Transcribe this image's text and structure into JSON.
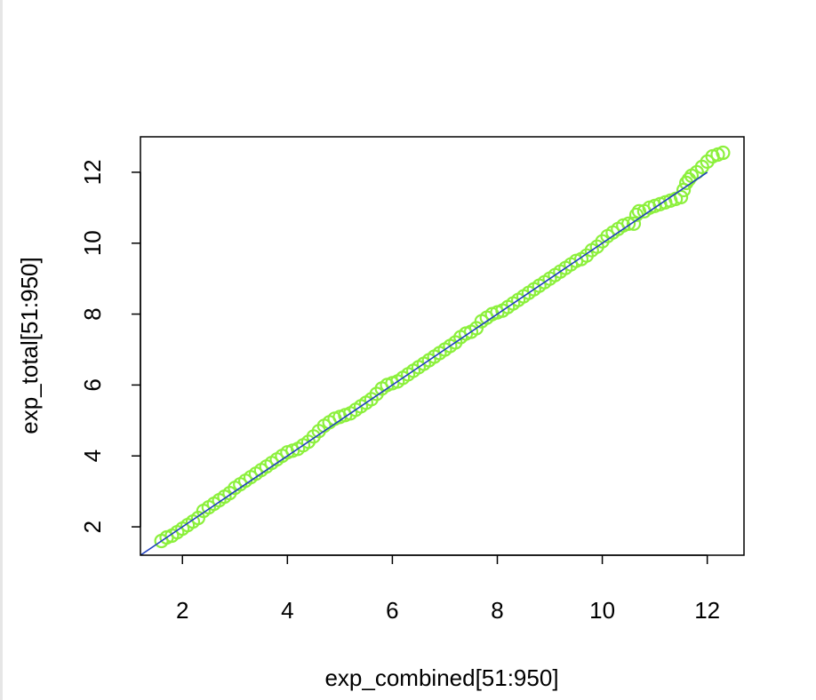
{
  "chart_data": {
    "type": "scatter",
    "title": "",
    "xlabel": "exp_combined[51:950]",
    "ylabel": "exp_total[51:950]",
    "xlim": [
      1.2,
      12.7
    ],
    "ylim": [
      1.2,
      13.0
    ],
    "x_ticks": [
      2,
      4,
      6,
      8,
      10,
      12
    ],
    "y_ticks": [
      2,
      4,
      6,
      8,
      10,
      12
    ],
    "x_tick_labels": [
      "2",
      "4",
      "6",
      "8",
      "10",
      "12"
    ],
    "y_tick_labels": [
      "2",
      "4",
      "6",
      "8",
      "10",
      "12"
    ],
    "grid": false,
    "point_color": "#8cf03c",
    "line_color": "#1f3fbf",
    "reference_line": {
      "type": "abline",
      "intercept": 0,
      "slope": 1,
      "x_range": [
        1.2,
        12.0
      ]
    },
    "series": [
      {
        "values": [
          [
            1.6,
            1.6
          ],
          [
            1.7,
            1.7
          ],
          [
            1.8,
            1.75
          ],
          [
            1.9,
            1.85
          ],
          [
            2.0,
            1.95
          ],
          [
            2.1,
            2.05
          ],
          [
            2.2,
            2.15
          ],
          [
            2.3,
            2.25
          ],
          [
            2.4,
            2.45
          ],
          [
            2.5,
            2.55
          ],
          [
            2.6,
            2.65
          ],
          [
            2.7,
            2.75
          ],
          [
            2.8,
            2.85
          ],
          [
            2.9,
            2.95
          ],
          [
            3.0,
            3.1
          ],
          [
            3.1,
            3.2
          ],
          [
            3.2,
            3.3
          ],
          [
            3.3,
            3.4
          ],
          [
            3.4,
            3.5
          ],
          [
            3.5,
            3.6
          ],
          [
            3.6,
            3.7
          ],
          [
            3.7,
            3.8
          ],
          [
            3.8,
            3.9
          ],
          [
            3.9,
            4.0
          ],
          [
            4.0,
            4.1
          ],
          [
            4.1,
            4.15
          ],
          [
            4.2,
            4.2
          ],
          [
            4.3,
            4.3
          ],
          [
            4.4,
            4.4
          ],
          [
            4.5,
            4.55
          ],
          [
            4.6,
            4.7
          ],
          [
            4.7,
            4.85
          ],
          [
            4.8,
            4.95
          ],
          [
            4.9,
            5.05
          ],
          [
            5.0,
            5.1
          ],
          [
            5.1,
            5.15
          ],
          [
            5.2,
            5.2
          ],
          [
            5.3,
            5.3
          ],
          [
            5.4,
            5.4
          ],
          [
            5.5,
            5.5
          ],
          [
            5.6,
            5.6
          ],
          [
            5.7,
            5.75
          ],
          [
            5.8,
            5.9
          ],
          [
            5.9,
            6.0
          ],
          [
            6.0,
            6.05
          ],
          [
            6.1,
            6.1
          ],
          [
            6.2,
            6.2
          ],
          [
            6.3,
            6.3
          ],
          [
            6.4,
            6.4
          ],
          [
            6.5,
            6.5
          ],
          [
            6.6,
            6.6
          ],
          [
            6.7,
            6.7
          ],
          [
            6.8,
            6.8
          ],
          [
            6.9,
            6.9
          ],
          [
            7.0,
            7.0
          ],
          [
            7.1,
            7.1
          ],
          [
            7.2,
            7.2
          ],
          [
            7.3,
            7.35
          ],
          [
            7.4,
            7.45
          ],
          [
            7.5,
            7.5
          ],
          [
            7.6,
            7.6
          ],
          [
            7.7,
            7.8
          ],
          [
            7.8,
            7.9
          ],
          [
            7.9,
            8.0
          ],
          [
            8.0,
            8.05
          ],
          [
            8.1,
            8.1
          ],
          [
            8.2,
            8.2
          ],
          [
            8.3,
            8.3
          ],
          [
            8.4,
            8.4
          ],
          [
            8.5,
            8.5
          ],
          [
            8.6,
            8.6
          ],
          [
            8.7,
            8.7
          ],
          [
            8.8,
            8.8
          ],
          [
            8.9,
            8.9
          ],
          [
            9.0,
            9.0
          ],
          [
            9.1,
            9.1
          ],
          [
            9.2,
            9.2
          ],
          [
            9.3,
            9.3
          ],
          [
            9.4,
            9.4
          ],
          [
            9.5,
            9.5
          ],
          [
            9.6,
            9.55
          ],
          [
            9.7,
            9.65
          ],
          [
            9.8,
            9.8
          ],
          [
            9.9,
            9.9
          ],
          [
            10.0,
            10.05
          ],
          [
            10.1,
            10.2
          ],
          [
            10.2,
            10.3
          ],
          [
            10.3,
            10.4
          ],
          [
            10.4,
            10.5
          ],
          [
            10.5,
            10.55
          ],
          [
            10.6,
            10.55
          ],
          [
            10.65,
            10.8
          ],
          [
            10.7,
            10.9
          ],
          [
            10.8,
            10.9
          ],
          [
            10.9,
            11.0
          ],
          [
            11.0,
            11.05
          ],
          [
            11.1,
            11.1
          ],
          [
            11.2,
            11.15
          ],
          [
            11.3,
            11.2
          ],
          [
            11.4,
            11.25
          ],
          [
            11.5,
            11.3
          ],
          [
            11.55,
            11.5
          ],
          [
            11.6,
            11.7
          ],
          [
            11.65,
            11.8
          ],
          [
            11.7,
            11.9
          ],
          [
            11.8,
            12.0
          ],
          [
            11.9,
            12.15
          ],
          [
            12.0,
            12.3
          ],
          [
            12.1,
            12.45
          ],
          [
            12.2,
            12.5
          ],
          [
            12.3,
            12.55
          ]
        ]
      }
    ]
  }
}
